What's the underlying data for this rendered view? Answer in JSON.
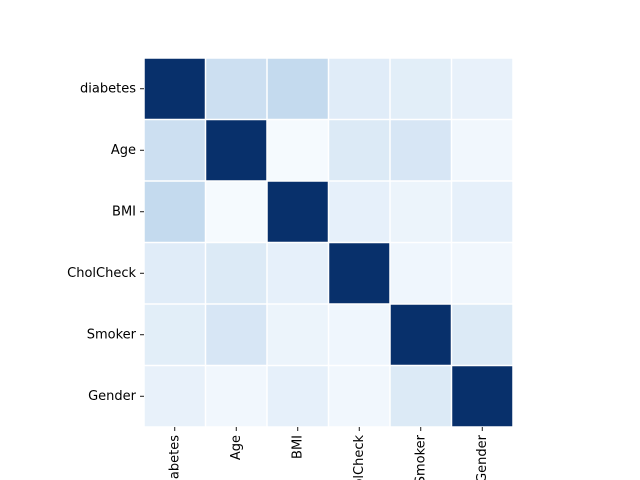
{
  "chart_data": {
    "type": "heatmap",
    "title": "",
    "xlabel": "",
    "ylabel": "",
    "x_categories": [
      "diabetes",
      "Age",
      "BMI",
      "CholCheck",
      "Smoker",
      "Gender"
    ],
    "y_categories": [
      "diabetes",
      "Age",
      "BMI",
      "CholCheck",
      "Smoker",
      "Gender"
    ],
    "values": [
      [
        1.0,
        0.18,
        0.22,
        0.07,
        0.06,
        0.03
      ],
      [
        0.18,
        1.0,
        -0.04,
        0.09,
        0.12,
        -0.02
      ],
      [
        0.22,
        -0.04,
        1.0,
        0.04,
        0.01,
        0.04
      ],
      [
        0.07,
        0.09,
        0.04,
        1.0,
        -0.01,
        -0.02
      ],
      [
        0.06,
        0.12,
        0.01,
        -0.01,
        1.0,
        0.09
      ],
      [
        0.03,
        -0.02,
        0.04,
        -0.02,
        0.09,
        1.0
      ]
    ],
    "vmin": -0.05,
    "vmax": 1.0,
    "colormap": [
      "#f7fbff",
      "#deebf7",
      "#c6dbef",
      "#9ecae1",
      "#6baed6",
      "#4292c6",
      "#2171b5",
      "#08519c",
      "#08306b"
    ],
    "cell_border_color": "#ffffff",
    "colorbar": false,
    "grid": false
  }
}
